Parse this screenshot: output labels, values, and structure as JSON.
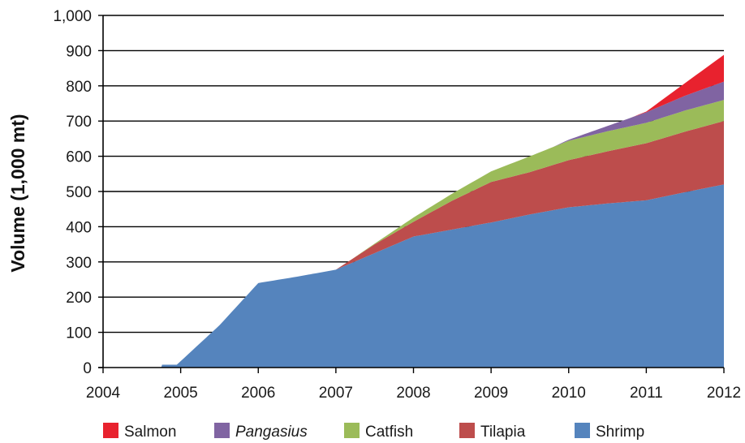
{
  "chart_data": {
    "type": "area",
    "stacked": true,
    "ylabel": "Volume (1,000 mt)",
    "xlabel": "",
    "ylim": [
      0,
      1000
    ],
    "xlim": [
      2004,
      2012
    ],
    "y_ticks": [
      "0",
      "100",
      "200",
      "300",
      "400",
      "500",
      "600",
      "700",
      "800",
      "900",
      "1,000"
    ],
    "x_ticks": [
      "2004",
      "2005",
      "2006",
      "2007",
      "2008",
      "2009",
      "2010",
      "2011",
      "2012"
    ],
    "grid": "horizontal",
    "legend_position": "bottom",
    "series": [
      {
        "name": "Shrimp",
        "color": "#5584bd",
        "points": [
          [
            2004.75,
            0
          ],
          [
            2004.76,
            8
          ],
          [
            2004.95,
            8
          ],
          [
            2005.5,
            120
          ],
          [
            2006.0,
            240
          ],
          [
            2006.5,
            258
          ],
          [
            2007.0,
            278
          ],
          [
            2007.5,
            325
          ],
          [
            2008.0,
            372
          ],
          [
            2008.5,
            392
          ],
          [
            2009.0,
            412
          ],
          [
            2009.5,
            435
          ],
          [
            2010.0,
            455
          ],
          [
            2010.5,
            466
          ],
          [
            2011.0,
            475
          ],
          [
            2011.5,
            498
          ],
          [
            2012.0,
            520
          ]
        ]
      },
      {
        "name": "Tilapia",
        "color": "#bd4d4c",
        "points": [
          [
            2004.75,
            0
          ],
          [
            2007.0,
            0
          ],
          [
            2007.2,
            10
          ],
          [
            2007.5,
            25
          ],
          [
            2008.0,
            42
          ],
          [
            2008.5,
            82
          ],
          [
            2009.0,
            115
          ],
          [
            2009.5,
            120
          ],
          [
            2010.0,
            134
          ],
          [
            2010.5,
            148
          ],
          [
            2011.0,
            162
          ],
          [
            2011.5,
            172
          ],
          [
            2012.0,
            180
          ]
        ]
      },
      {
        "name": "Catfish",
        "color": "#9bbb59",
        "points": [
          [
            2004.75,
            0
          ],
          [
            2007.0,
            0
          ],
          [
            2007.2,
            0
          ],
          [
            2007.5,
            2
          ],
          [
            2008.0,
            12
          ],
          [
            2008.5,
            20
          ],
          [
            2009.0,
            30
          ],
          [
            2009.5,
            45
          ],
          [
            2010.0,
            55
          ],
          [
            2010.5,
            57
          ],
          [
            2011.0,
            58
          ],
          [
            2011.5,
            60
          ],
          [
            2012.0,
            60
          ]
        ]
      },
      {
        "name": "Pangasius",
        "color": "#8064a2",
        "italic": true,
        "points": [
          [
            2004.75,
            0
          ],
          [
            2009.8,
            0
          ],
          [
            2010.0,
            3
          ],
          [
            2010.5,
            15
          ],
          [
            2011.0,
            30
          ],
          [
            2011.5,
            42
          ],
          [
            2012.0,
            52
          ]
        ]
      },
      {
        "name": "Salmon",
        "color": "#e8222e",
        "points": [
          [
            2004.75,
            0
          ],
          [
            2010.8,
            0
          ],
          [
            2011.0,
            2
          ],
          [
            2011.5,
            36
          ],
          [
            2012.0,
            76
          ]
        ]
      }
    ],
    "legend": [
      {
        "name": "Salmon",
        "color": "#e8222e",
        "italic": false
      },
      {
        "name": "Pangasius",
        "color": "#8064a2",
        "italic": true
      },
      {
        "name": "Catfish",
        "color": "#9bbb59",
        "italic": false
      },
      {
        "name": "Tilapia",
        "color": "#bd4d4c",
        "italic": false
      },
      {
        "name": "Shrimp",
        "color": "#5584bd",
        "italic": false
      }
    ]
  }
}
